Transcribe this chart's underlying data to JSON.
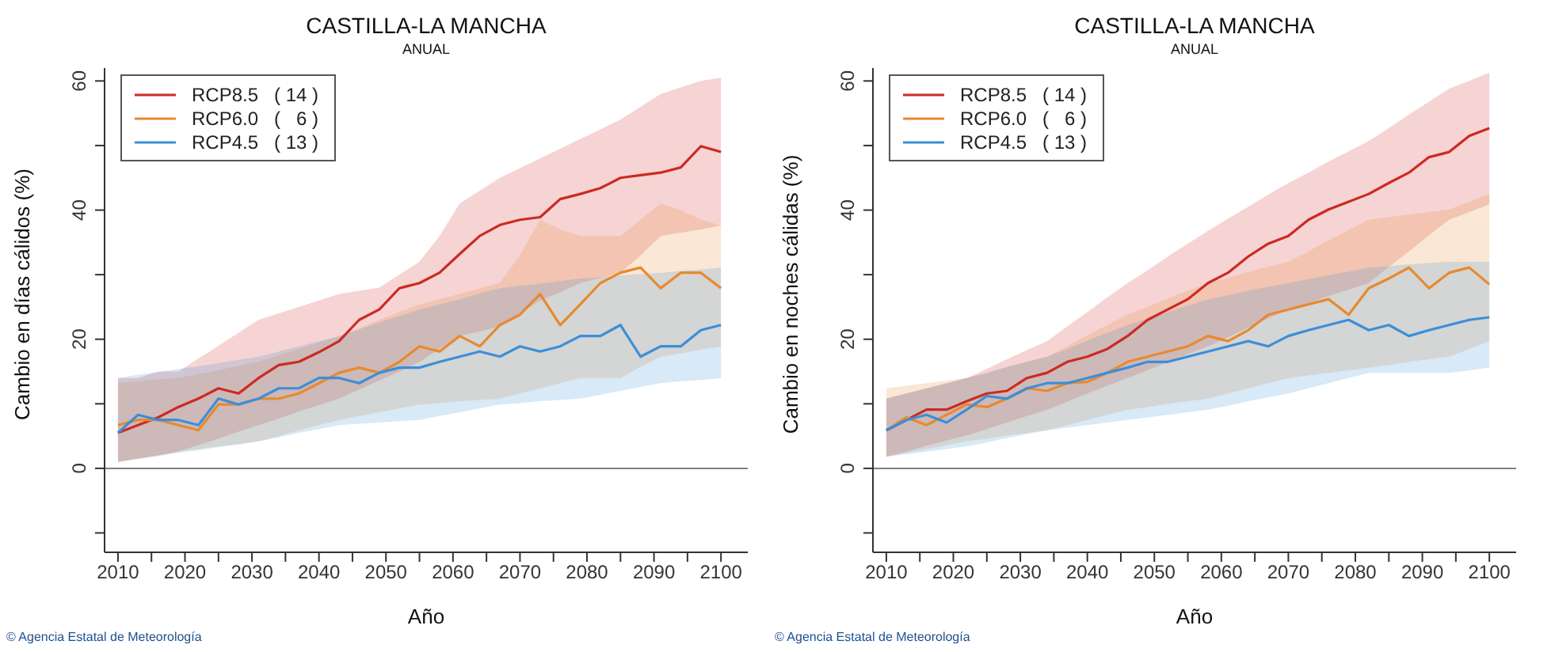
{
  "chart_data": [
    {
      "type": "line",
      "title": "CASTILLA-LA MANCHA",
      "subtitle": "ANUAL",
      "xlabel": "Año",
      "ylabel": "Cambio en días cálidos (%)",
      "annotations": [
        "© Agencia Estatal de Meteorología"
      ],
      "x": [
        2010,
        2013,
        2016,
        2019,
        2022,
        2025,
        2028,
        2031,
        2034,
        2037,
        2040,
        2043,
        2046,
        2049,
        2052,
        2055,
        2058,
        2061,
        2064,
        2067,
        2070,
        2073,
        2076,
        2079,
        2082,
        2085,
        2088,
        2091,
        2094,
        2097,
        2100
      ],
      "xlim": [
        2008,
        2104
      ],
      "xticks": [
        2010,
        {
          "value": 2015,
          "label": null
        },
        2020,
        {
          "value": 2025,
          "label": null
        },
        2030,
        {
          "value": 2035,
          "label": null
        },
        2040,
        {
          "value": 2045,
          "label": null
        },
        2050,
        {
          "value": 2055,
          "label": null
        },
        2060,
        {
          "value": 2065,
          "label": null
        },
        2070,
        {
          "value": 2075,
          "label": null
        },
        2080,
        {
          "value": 2085,
          "label": null
        },
        2090,
        {
          "value": 2095,
          "label": null
        },
        2100
      ],
      "ylim": [
        -13,
        62
      ],
      "yticks": [
        {
          "value": -10,
          "label": null
        },
        0,
        {
          "value": 10,
          "label": null
        },
        20,
        {
          "value": 30,
          "label": null
        },
        40,
        {
          "value": 50,
          "label": null
        },
        60
      ],
      "legend": "top left",
      "grid": false,
      "ref_lines": [
        {
          "axis": "y",
          "value": 0,
          "color": "#808080"
        }
      ],
      "series": [
        {
          "name": "RCP8.5   ( 14 )",
          "color": "#cc2a22",
          "values": [
            5.5,
            6.7,
            7.9,
            9.5,
            10.8,
            12.4,
            11.6,
            14,
            16,
            16.5,
            18,
            19.7,
            23,
            24.6,
            27.9,
            28.7,
            30.3,
            33.2,
            36,
            37.7,
            38.5,
            38.9,
            41.7,
            42.5,
            43.4,
            45,
            45.4,
            45.8,
            46.6,
            49.9,
            49
          ],
          "lower": [
            1,
            1.5,
            2,
            2.6,
            3.6,
            4.6,
            5.7,
            6.7,
            7.7,
            8.8,
            9.8,
            10.8,
            12.2,
            13.6,
            15,
            16.5,
            18.5,
            20.5,
            21.2,
            22,
            24,
            26,
            27.3,
            28.7,
            29.5,
            30.3,
            33,
            36,
            36.5,
            37,
            37.6
          ],
          "upper": [
            14,
            14,
            15,
            15,
            17,
            19,
            21,
            23,
            24,
            25,
            26,
            27,
            27.5,
            28,
            30,
            32,
            36,
            41,
            43,
            45,
            46.5,
            48,
            49.5,
            51,
            52.5,
            54,
            56,
            58,
            59,
            60,
            60.5
          ]
        },
        {
          "name": "RCP6.0   (   6 )",
          "color": "#e8892e",
          "values": [
            6.7,
            7.5,
            7.5,
            6.7,
            5.9,
            9.9,
            9.9,
            10.8,
            10.8,
            11.6,
            13.2,
            14.8,
            15.6,
            14.8,
            16.5,
            18.9,
            18.1,
            20.5,
            18.9,
            22.2,
            23.8,
            27,
            22.2,
            25.4,
            28.7,
            30.3,
            31.1,
            27.9,
            30.3,
            30.3,
            27.9
          ],
          "lower": [
            1,
            1.5,
            2,
            2.6,
            3,
            3.4,
            3.8,
            4.2,
            5,
            5.9,
            6.7,
            7.5,
            8.1,
            8.7,
            9.3,
            9.9,
            10.1,
            10.4,
            10.6,
            10.8,
            11.6,
            12.4,
            13.2,
            14,
            14,
            14,
            15.7,
            17.3,
            17.8,
            18.4,
            18.9
          ],
          "upper": [
            13.2,
            13.5,
            13.8,
            14,
            14.6,
            15.2,
            15.9,
            16.5,
            17.5,
            18.5,
            19.5,
            20.5,
            21.7,
            23,
            24.2,
            25.4,
            26.2,
            27,
            27.9,
            28.7,
            33,
            38.5,
            37,
            36,
            36,
            36,
            38.5,
            41,
            40,
            38.5,
            37.6
          ]
        },
        {
          "name": "RCP4.5   ( 13 )",
          "color": "#3a8fd9",
          "values": [
            5.5,
            8.3,
            7.5,
            7.5,
            6.7,
            10.8,
            9.9,
            10.8,
            12.4,
            12.4,
            14,
            14,
            13.2,
            14.8,
            15.6,
            15.6,
            16.5,
            17.3,
            18.1,
            17.3,
            18.9,
            18.1,
            18.9,
            20.5,
            20.5,
            22.2,
            17.3,
            18.9,
            18.9,
            21.4,
            22.2
          ],
          "lower": [
            1,
            1.5,
            1.9,
            2.4,
            2.8,
            3.3,
            3.7,
            4.2,
            4.8,
            5.5,
            6.1,
            6.7,
            6.9,
            7.1,
            7.3,
            7.5,
            8.1,
            8.7,
            9.3,
            9.9,
            10.1,
            10.4,
            10.6,
            10.8,
            11.4,
            12,
            12.6,
            13.2,
            13.5,
            13.7,
            14
          ],
          "upper": [
            14,
            14.5,
            14.9,
            15.4,
            15.8,
            16.3,
            16.8,
            17.3,
            18.1,
            18.9,
            19.7,
            20.5,
            21.5,
            22.6,
            23.6,
            24.6,
            25.4,
            26.2,
            27.1,
            27.9,
            28.3,
            28.6,
            29,
            29.4,
            29.6,
            29.9,
            30.1,
            30.3,
            30.6,
            30.8,
            31.1
          ]
        }
      ]
    },
    {
      "type": "line",
      "title": "CASTILLA-LA MANCHA",
      "subtitle": "ANUAL",
      "xlabel": "Año",
      "ylabel": "Cambio en noches cálidas (%)",
      "annotations": [
        "© Agencia Estatal de Meteorología"
      ],
      "x": [
        2010,
        2013,
        2016,
        2019,
        2022,
        2025,
        2028,
        2031,
        2034,
        2037,
        2040,
        2043,
        2046,
        2049,
        2052,
        2055,
        2058,
        2061,
        2064,
        2067,
        2070,
        2073,
        2076,
        2079,
        2082,
        2085,
        2088,
        2091,
        2094,
        2097,
        2100
      ],
      "xlim": [
        2008,
        2104
      ],
      "xticks": [
        2010,
        {
          "value": 2015,
          "label": null
        },
        2020,
        {
          "value": 2025,
          "label": null
        },
        2030,
        {
          "value": 2035,
          "label": null
        },
        2040,
        {
          "value": 2045,
          "label": null
        },
        2050,
        {
          "value": 2055,
          "label": null
        },
        2060,
        {
          "value": 2065,
          "label": null
        },
        2070,
        {
          "value": 2075,
          "label": null
        },
        2080,
        {
          "value": 2085,
          "label": null
        },
        2090,
        {
          "value": 2095,
          "label": null
        },
        2100
      ],
      "ylim": [
        -13,
        62
      ],
      "yticks": [
        {
          "value": -10,
          "label": null
        },
        0,
        {
          "value": 10,
          "label": null
        },
        20,
        {
          "value": 30,
          "label": null
        },
        40,
        {
          "value": 50,
          "label": null
        },
        60
      ],
      "legend": "top left",
      "grid": false,
      "ref_lines": [
        {
          "axis": "y",
          "value": 0,
          "color": "#808080"
        }
      ],
      "series": [
        {
          "name": "RCP8.5   ( 14 )",
          "color": "#cc2a22",
          "values": [
            5.9,
            7.5,
            9.1,
            9.1,
            10.4,
            11.6,
            12,
            14,
            14.8,
            16.5,
            17.3,
            18.5,
            20.5,
            23,
            24.6,
            26.2,
            28.7,
            30.3,
            32.8,
            34.8,
            36,
            38.5,
            40.1,
            41.3,
            42.5,
            44.2,
            45.8,
            48.2,
            49,
            51.5,
            52.7
          ],
          "lower": [
            1.8,
            2.6,
            3.5,
            4.3,
            5.1,
            6.1,
            7.1,
            8.1,
            9.1,
            10.3,
            11.6,
            12.8,
            14,
            15.2,
            16.5,
            17.7,
            18.9,
            20.3,
            21.8,
            23.2,
            24.6,
            25.6,
            26.7,
            27.7,
            28.7,
            31.2,
            33.6,
            36.1,
            38.5,
            39.7,
            40.9
          ],
          "upper": [
            10.8,
            11.6,
            12.4,
            13.2,
            14,
            15.4,
            16.9,
            18.3,
            19.7,
            22,
            24.2,
            26.5,
            28.7,
            30.7,
            32.8,
            34.8,
            36.8,
            38.7,
            40.5,
            42.4,
            44.2,
            45.8,
            47.5,
            49.1,
            50.7,
            52.7,
            54.8,
            56.8,
            58.8,
            60,
            61.3
          ]
        },
        {
          "name": "RCP6.0   (   6 )",
          "color": "#e8892e",
          "values": [
            5.9,
            7.9,
            6.7,
            8.3,
            9.9,
            9.5,
            10.8,
            12.4,
            12,
            13.2,
            13.4,
            14.8,
            16.5,
            17.3,
            18.1,
            18.9,
            20.5,
            19.7,
            21.4,
            23.8,
            24.6,
            25.4,
            26.2,
            23.8,
            27.9,
            29.4,
            31.1,
            27.9,
            30.3,
            31.1,
            28.5
          ],
          "lower": [
            1.8,
            2.4,
            3,
            3.6,
            4.2,
            4.6,
            5.1,
            5.5,
            5.9,
            6.7,
            7.5,
            8.3,
            9.1,
            9.5,
            10,
            10.4,
            10.8,
            11.6,
            12.4,
            13.2,
            14,
            14.4,
            14.8,
            15.2,
            15.6,
            16,
            16.5,
            16.9,
            17.3,
            18.5,
            19.7
          ],
          "upper": [
            12.4,
            12.8,
            13.2,
            13.6,
            14,
            14.8,
            15.7,
            16.5,
            17.3,
            18.9,
            20.6,
            22.2,
            23.8,
            25,
            26.3,
            27.5,
            28.7,
            29.5,
            30.4,
            31.2,
            32,
            33.6,
            35.3,
            36.9,
            38.5,
            38.9,
            39.3,
            39.7,
            40.1,
            41.3,
            42.5
          ]
        },
        {
          "name": "RCP4.5   ( 13 )",
          "color": "#3a8fd9",
          "values": [
            5.9,
            7.5,
            8.3,
            7.1,
            9.1,
            11.2,
            10.8,
            12.4,
            13.2,
            13.2,
            14,
            14.8,
            15.6,
            16.5,
            16.5,
            17.3,
            18.1,
            18.9,
            19.7,
            18.9,
            20.5,
            21.4,
            22.2,
            23,
            21.4,
            22.2,
            20.5,
            21.4,
            22.2,
            23,
            23.4
          ],
          "lower": [
            1.8,
            2.2,
            2.6,
            3,
            3.4,
            4,
            4.7,
            5.3,
            5.9,
            6.3,
            6.7,
            7.1,
            7.5,
            7.9,
            8.3,
            8.7,
            9.1,
            9.7,
            10.4,
            11,
            11.6,
            12.4,
            13.2,
            14,
            14.8,
            14.8,
            14.8,
            14.8,
            14.8,
            15.2,
            15.6
          ],
          "upper": [
            10.8,
            11.6,
            12.4,
            13.2,
            14,
            14.8,
            15.7,
            16.5,
            17.3,
            18.5,
            19.8,
            21,
            22.2,
            23.2,
            24.2,
            25.2,
            26.2,
            26.8,
            27.5,
            28.1,
            28.7,
            29.3,
            29.9,
            30.5,
            31.1,
            31.3,
            31.6,
            31.8,
            32,
            32,
            32
          ]
        }
      ]
    }
  ]
}
